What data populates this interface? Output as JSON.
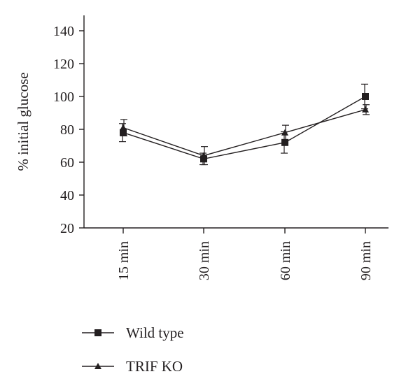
{
  "chart_data": {
    "type": "line",
    "categories": [
      "15 min",
      "30 min",
      "60 min",
      "90 min"
    ],
    "ylabel": "% initial glucose",
    "xlabel": "",
    "ylim": [
      20,
      140
    ],
    "yticks": [
      20,
      40,
      60,
      80,
      100,
      120,
      140
    ],
    "grid": false,
    "legend_position": "bottom-left",
    "series": [
      {
        "name": "Wild type",
        "marker": "square",
        "color": "#231f20",
        "values": [
          78,
          62,
          72,
          100
        ],
        "error": [
          5.5,
          3.5,
          6.5,
          7.5
        ]
      },
      {
        "name": "TRIF KO",
        "marker": "triangle",
        "color": "#231f20",
        "values": [
          81,
          64,
          78,
          92
        ],
        "error": [
          5,
          5.5,
          4.5,
          3
        ]
      }
    ]
  }
}
